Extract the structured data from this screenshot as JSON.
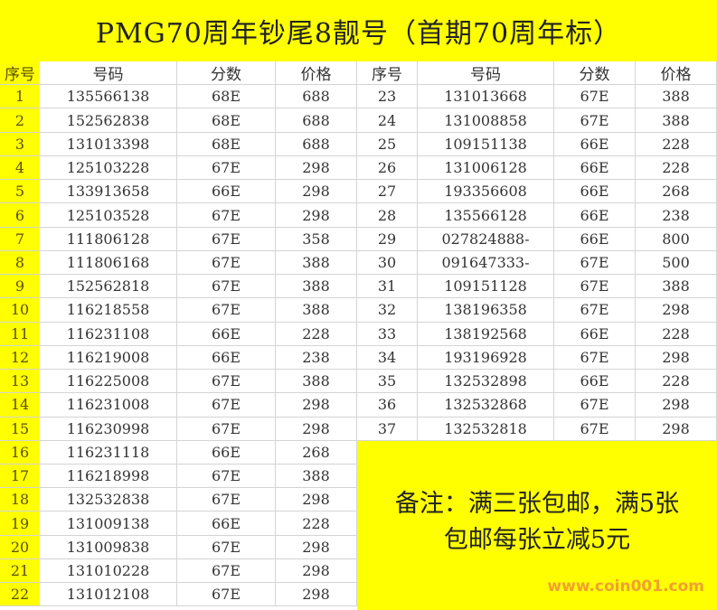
{
  "title": "PMG70周年钞尾8靓号（首期70周年标）",
  "headers": [
    "序号",
    "号码",
    "分数",
    "价格"
  ],
  "left_rows": [
    [
      "1",
      "135566138",
      "68E",
      "688"
    ],
    [
      "2",
      "152562838",
      "68E",
      "688"
    ],
    [
      "3",
      "131013398",
      "68E",
      "688"
    ],
    [
      "4",
      "125103228",
      "67E",
      "298"
    ],
    [
      "5",
      "133913658",
      "66E",
      "298"
    ],
    [
      "6",
      "125103528",
      "67E",
      "298"
    ],
    [
      "7",
      "111806128",
      "67E",
      "358"
    ],
    [
      "8",
      "111806168",
      "67E",
      "388"
    ],
    [
      "9",
      "152562818",
      "67E",
      "388"
    ],
    [
      "10",
      "116218558",
      "67E",
      "388"
    ],
    [
      "11",
      "116231108",
      "66E",
      "228"
    ],
    [
      "12",
      "116219008",
      "66E",
      "238"
    ],
    [
      "13",
      "116225008",
      "67E",
      "388"
    ],
    [
      "14",
      "116231008",
      "67E",
      "298"
    ],
    [
      "15",
      "116230998",
      "67E",
      "298"
    ],
    [
      "16",
      "116231118",
      "66E",
      "268"
    ],
    [
      "17",
      "116218998",
      "67E",
      "388"
    ],
    [
      "18",
      "132532838",
      "67E",
      "298"
    ],
    [
      "19",
      "131009138",
      "66E",
      "228"
    ],
    [
      "20",
      "131009838",
      "67E",
      "298"
    ],
    [
      "21",
      "131010228",
      "67E",
      "298"
    ],
    [
      "22",
      "131012108",
      "67E",
      "298"
    ]
  ],
  "right_rows": [
    [
      "23",
      "131013668",
      "67E",
      "388"
    ],
    [
      "24",
      "131008858",
      "67E",
      "388"
    ],
    [
      "25",
      "109151138",
      "66E",
      "228"
    ],
    [
      "26",
      "131006128",
      "66E",
      "228"
    ],
    [
      "27",
      "193356608",
      "66E",
      "268"
    ],
    [
      "28",
      "135566128",
      "66E",
      "238"
    ],
    [
      "29",
      "027824888-",
      "66E",
      "800"
    ],
    [
      "30",
      "091647333-",
      "67E",
      "500"
    ],
    [
      "31",
      "109151128",
      "67E",
      "388"
    ],
    [
      "32",
      "138196358",
      "67E",
      "298"
    ],
    [
      "33",
      "138192568",
      "66E",
      "228"
    ],
    [
      "34",
      "193196928",
      "67E",
      "298"
    ],
    [
      "35",
      "132532898",
      "66E",
      "228"
    ],
    [
      "36",
      "132532868",
      "67E",
      "298"
    ],
    [
      "37",
      "132532818",
      "67E",
      "298"
    ]
  ],
  "note": {
    "line1": "备注：满三张包邮，满5张",
    "line2": "包邮每张立减5元"
  },
  "watermark": "www.coin001.com",
  "colors": {
    "highlight": "#ffff00",
    "watermark": "#f0a030"
  }
}
